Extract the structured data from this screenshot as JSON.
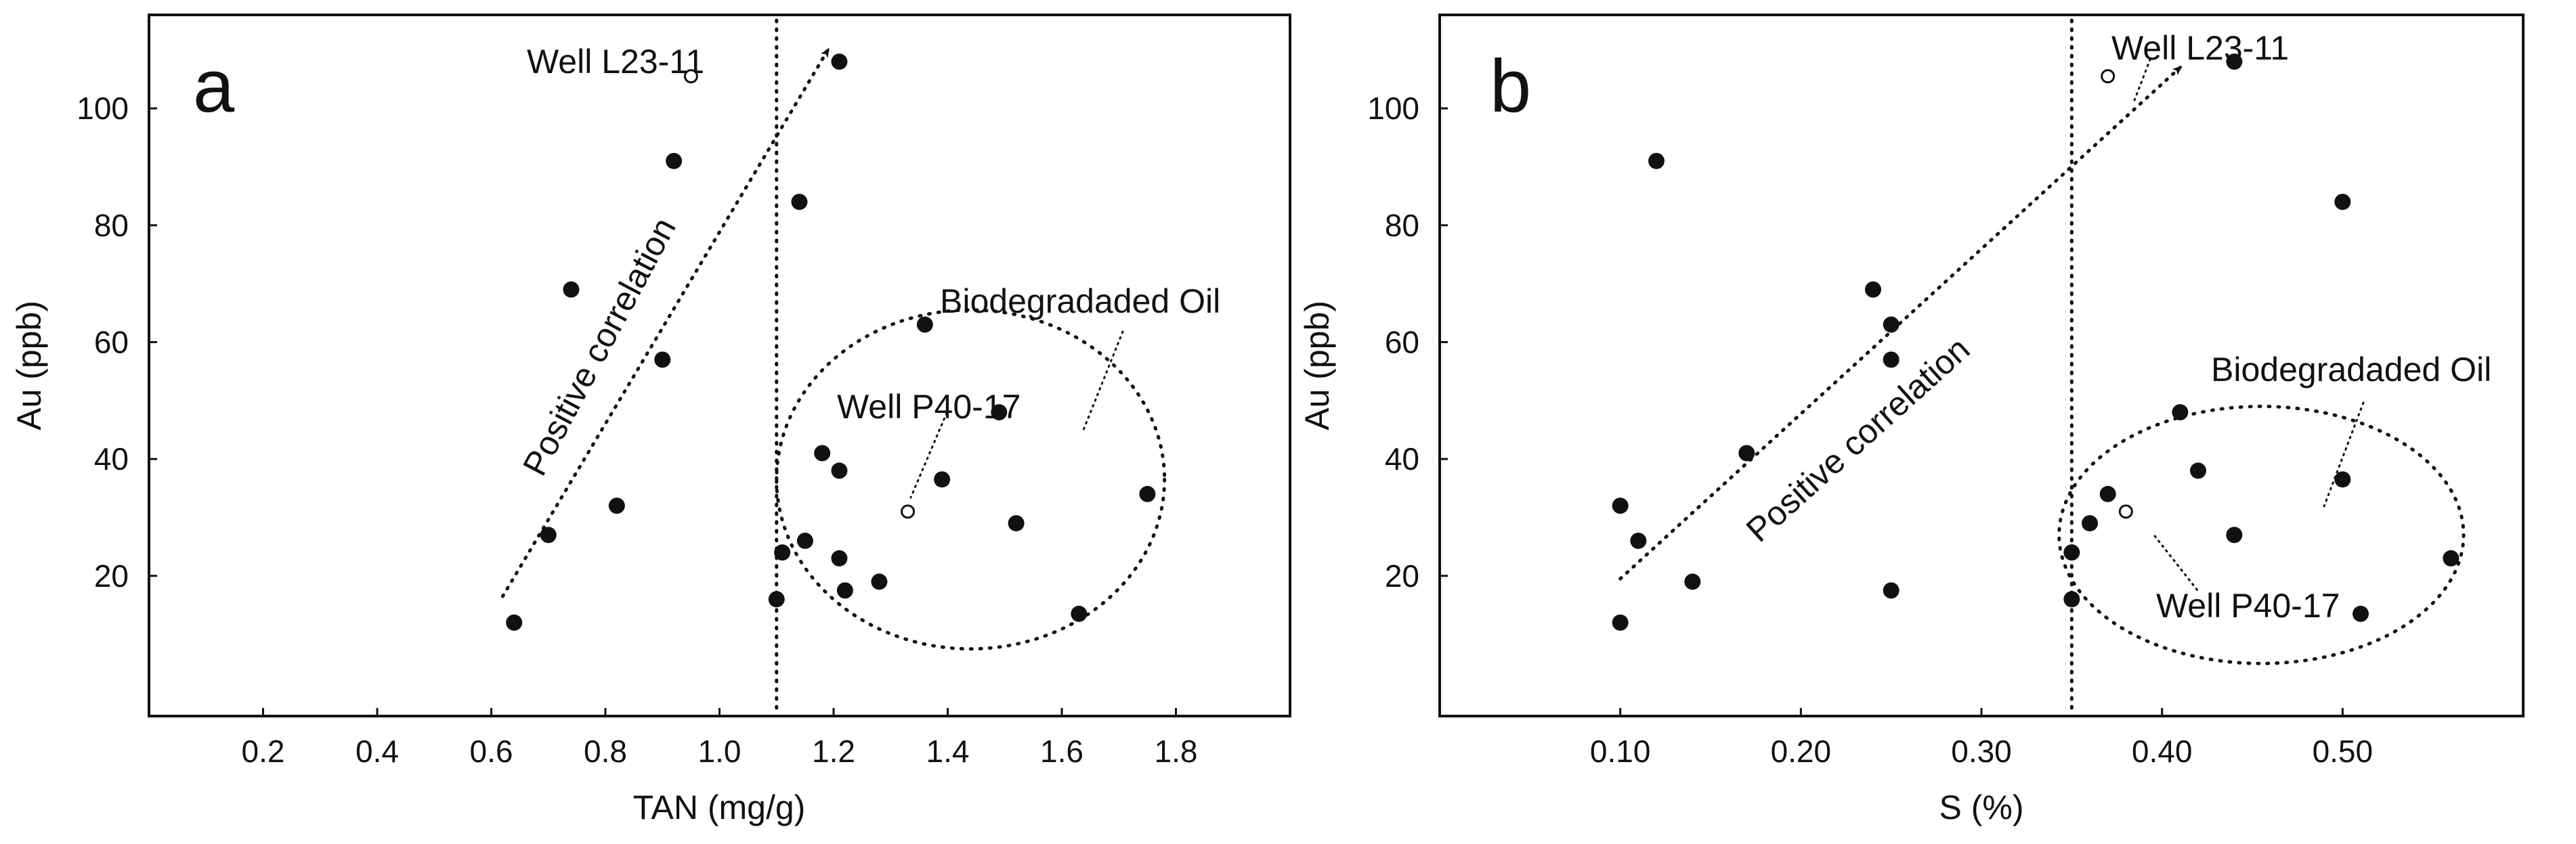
{
  "colors": {
    "ink": "#111111",
    "background": "#ffffff"
  },
  "chart_data": [
    {
      "type": "scatter",
      "panel": "a",
      "xlabel": "TAN (mg/g)",
      "ylabel": "Au (ppb)",
      "xlim": [
        0,
        2.0
      ],
      "ylim": [
        -4,
        116
      ],
      "xticks": [
        0.2,
        0.4,
        0.6,
        0.8,
        1.0,
        1.2,
        1.4,
        1.6,
        1.8
      ],
      "xtick_labels": [
        "0.2",
        "0.4",
        "0.6",
        "0.8",
        "1.0",
        "1.2",
        "1.4",
        "1.6",
        "1.8"
      ],
      "yticks": [
        20,
        40,
        60,
        80,
        100
      ],
      "ytick_labels": [
        "20",
        "40",
        "60",
        "80",
        "100"
      ],
      "threshold_x": 1.1,
      "filled_points": [
        {
          "x": 0.64,
          "y": 12
        },
        {
          "x": 0.7,
          "y": 27
        },
        {
          "x": 0.74,
          "y": 69
        },
        {
          "x": 0.82,
          "y": 32
        },
        {
          "x": 0.9,
          "y": 57
        },
        {
          "x": 0.92,
          "y": 91
        },
        {
          "x": 1.1,
          "y": 16
        },
        {
          "x": 1.11,
          "y": 24
        },
        {
          "x": 1.14,
          "y": 84
        },
        {
          "x": 1.15,
          "y": 26
        },
        {
          "x": 1.18,
          "y": 41
        },
        {
          "x": 1.21,
          "y": 38
        },
        {
          "x": 1.21,
          "y": 23
        },
        {
          "x": 1.21,
          "y": 108
        },
        {
          "x": 1.22,
          "y": 17.5
        },
        {
          "x": 1.28,
          "y": 19
        },
        {
          "x": 1.36,
          "y": 63
        },
        {
          "x": 1.39,
          "y": 36.5
        },
        {
          "x": 1.49,
          "y": 48
        },
        {
          "x": 1.52,
          "y": 29
        },
        {
          "x": 1.63,
          "y": 13.5
        },
        {
          "x": 1.75,
          "y": 34
        }
      ],
      "open_points": [
        {
          "x": 0.95,
          "y": 105.5,
          "label": "Well L23-11"
        },
        {
          "x": 1.33,
          "y": 31,
          "label": "Well P40-17"
        }
      ],
      "trend": {
        "label": "Positive correlation",
        "from": {
          "x": 0.62,
          "y": 16.5
        },
        "to": {
          "x": 1.19,
          "y": 110
        }
      },
      "region": {
        "label": "Biodegradaded Oil",
        "center": {
          "x": 1.44,
          "y": 36.5
        },
        "rx": 0.34,
        "ry": 29
      },
      "panel_label": "a",
      "well_L23_label": "Well L23-11",
      "well_P40_label": "Well P40-17",
      "trend_label": "Positive correlation",
      "region_label": "Biodegradaded Oil"
    },
    {
      "type": "scatter",
      "panel": "b",
      "xlabel": "S (%)",
      "ylabel": "Au (ppb)",
      "xlim": [
        0,
        0.6
      ],
      "ylim": [
        -4,
        116
      ],
      "xticks": [
        0.1,
        0.2,
        0.3,
        0.4,
        0.5
      ],
      "xtick_labels": [
        "0.10",
        "0.20",
        "0.30",
        "0.40",
        "0.50"
      ],
      "yticks": [
        20,
        40,
        60,
        80,
        100
      ],
      "ytick_labels": [
        "20",
        "40",
        "60",
        "80",
        "100"
      ],
      "threshold_x": 0.35,
      "filled_points": [
        {
          "x": 0.1,
          "y": 12
        },
        {
          "x": 0.1,
          "y": 32
        },
        {
          "x": 0.11,
          "y": 26
        },
        {
          "x": 0.12,
          "y": 91
        },
        {
          "x": 0.14,
          "y": 19
        },
        {
          "x": 0.17,
          "y": 41
        },
        {
          "x": 0.24,
          "y": 69
        },
        {
          "x": 0.25,
          "y": 63
        },
        {
          "x": 0.25,
          "y": 57
        },
        {
          "x": 0.25,
          "y": 17.5
        },
        {
          "x": 0.35,
          "y": 24
        },
        {
          "x": 0.35,
          "y": 16
        },
        {
          "x": 0.36,
          "y": 29
        },
        {
          "x": 0.37,
          "y": 34
        },
        {
          "x": 0.41,
          "y": 48
        },
        {
          "x": 0.42,
          "y": 38
        },
        {
          "x": 0.44,
          "y": 27
        },
        {
          "x": 0.44,
          "y": 108
        },
        {
          "x": 0.5,
          "y": 84
        },
        {
          "x": 0.5,
          "y": 36.5
        },
        {
          "x": 0.51,
          "y": 13.5
        },
        {
          "x": 0.56,
          "y": 23
        }
      ],
      "open_points": [
        {
          "x": 0.37,
          "y": 105.5,
          "label": "Well L23-11"
        },
        {
          "x": 0.38,
          "y": 31,
          "label": "Well P40-17"
        }
      ],
      "trend": {
        "label": "Positive correlation",
        "from": {
          "x": 0.1,
          "y": 19.5
        },
        "to": {
          "x": 0.41,
          "y": 107
        }
      },
      "region": {
        "label": "Biodegradaded Oil",
        "center": {
          "x": 0.455,
          "y": 27
        },
        "rx": 0.112,
        "ry": 22
      },
      "panel_label": "b",
      "well_L23_label": "Well L23-11",
      "well_P40_label": "Well P40-17",
      "trend_label": "Positive correlation",
      "region_label": "Biodegradaded Oil"
    }
  ]
}
